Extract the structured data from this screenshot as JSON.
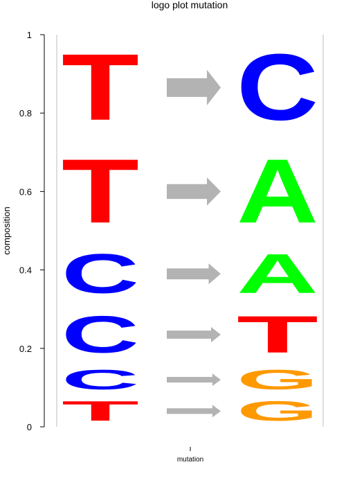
{
  "chart_data": {
    "type": "logo",
    "title": "logo plot mutation",
    "xlabel": "mutation",
    "ylabel": "composition",
    "ylim": [
      0,
      1
    ],
    "yticks": [
      "0",
      "0.2",
      "0.4",
      "0.6",
      "0.8",
      "1"
    ],
    "ytick_values": [
      0,
      0.2,
      0.4,
      0.6,
      0.8,
      1
    ],
    "colors": {
      "A": "#00ff00",
      "C": "#0000ff",
      "G": "#ff9900",
      "T": "#ff0000",
      "arrow": "#b3b3b3"
    },
    "left_stack": [
      {
        "letter": "T",
        "from": 0.0,
        "to": 0.08
      },
      {
        "letter": "C",
        "from": 0.08,
        "to": 0.16
      },
      {
        "letter": "C",
        "from": 0.16,
        "to": 0.31
      },
      {
        "letter": "C",
        "from": 0.31,
        "to": 0.47
      },
      {
        "letter": "T",
        "from": 0.47,
        "to": 0.73
      },
      {
        "letter": "T",
        "from": 0.73,
        "to": 1.0
      }
    ],
    "right_stack": [
      {
        "letter": "G",
        "from": 0.0,
        "to": 0.08
      },
      {
        "letter": "G",
        "from": 0.08,
        "to": 0.16
      },
      {
        "letter": "T",
        "from": 0.16,
        "to": 0.31
      },
      {
        "letter": "A",
        "from": 0.31,
        "to": 0.47
      },
      {
        "letter": "A",
        "from": 0.47,
        "to": 0.73
      },
      {
        "letter": "C",
        "from": 0.73,
        "to": 1.0
      }
    ],
    "mutations": [
      {
        "from": "T",
        "to": "G",
        "y": 0.04
      },
      {
        "from": "C",
        "to": "G",
        "y": 0.12
      },
      {
        "from": "C",
        "to": "T",
        "y": 0.235
      },
      {
        "from": "C",
        "to": "A",
        "y": 0.39
      },
      {
        "from": "T",
        "to": "A",
        "y": 0.6
      },
      {
        "from": "T",
        "to": "C",
        "y": 0.865
      }
    ]
  }
}
